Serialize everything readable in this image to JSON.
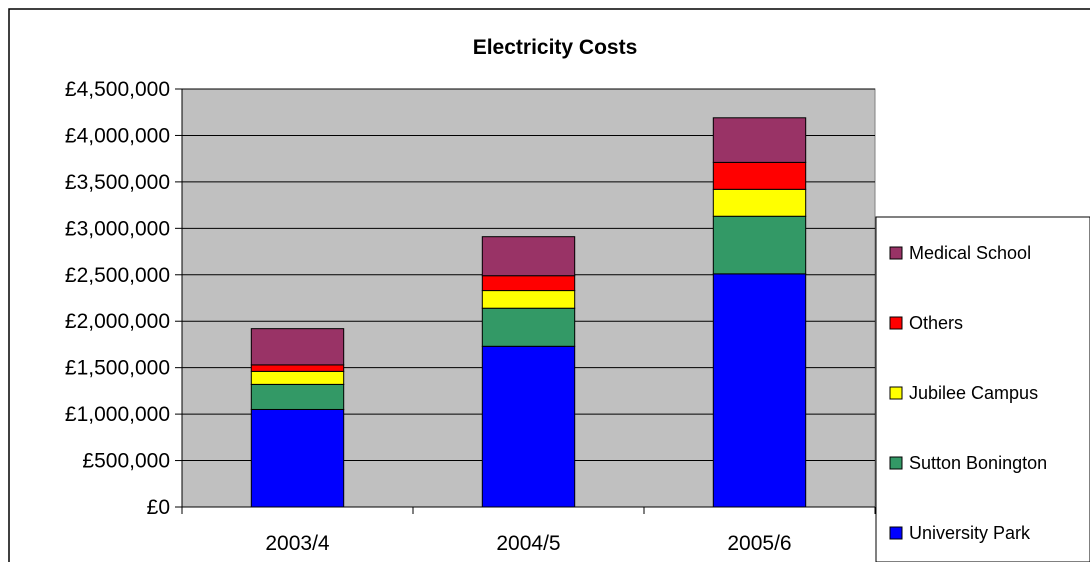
{
  "chart_data": {
    "type": "bar",
    "stacked": true,
    "title": "Electricity Costs",
    "xlabel": "",
    "ylabel": "",
    "categories": [
      "2003/4",
      "2004/5",
      "2005/6"
    ],
    "ylim": [
      0,
      4500000
    ],
    "yticks": [
      0,
      500000,
      1000000,
      1500000,
      2000000,
      2500000,
      3000000,
      3500000,
      4000000,
      4500000
    ],
    "ytick_labels": [
      "£0",
      "£500,000",
      "£1,000,000",
      "£1,500,000",
      "£2,000,000",
      "£2,500,000",
      "£3,000,000",
      "£3,500,000",
      "£4,000,000",
      "£4,500,000"
    ],
    "grid": true,
    "legend_position": "right",
    "plot_background": "#C0C0C0",
    "series": [
      {
        "name": "University Park",
        "color": "#0000FF",
        "values": [
          1050000,
          1730000,
          2510000
        ]
      },
      {
        "name": "Sutton Bonington",
        "color": "#339966",
        "values": [
          270000,
          410000,
          620000
        ]
      },
      {
        "name": "Jubilee Campus",
        "color": "#FFFF00",
        "values": [
          140000,
          190000,
          290000
        ]
      },
      {
        "name": "Others",
        "color": "#FF0000",
        "values": [
          70000,
          160000,
          290000
        ]
      },
      {
        "name": "Medical School",
        "color": "#993366",
        "values": [
          390000,
          420000,
          480000
        ]
      }
    ]
  }
}
